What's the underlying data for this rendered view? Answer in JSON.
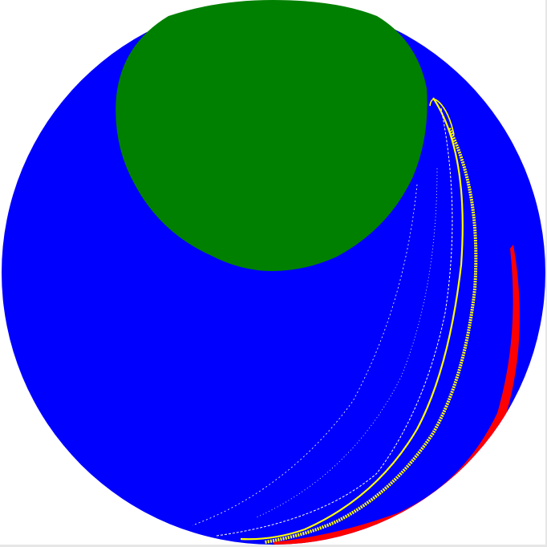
{
  "figure": {
    "background_color": "#ffffff",
    "disk_color": "#0000ff",
    "region_color": "#008000",
    "band_red_color": "#ff0000",
    "band_yellow_color": "#ffff00",
    "frame_color": "#e6e6e6"
  }
}
